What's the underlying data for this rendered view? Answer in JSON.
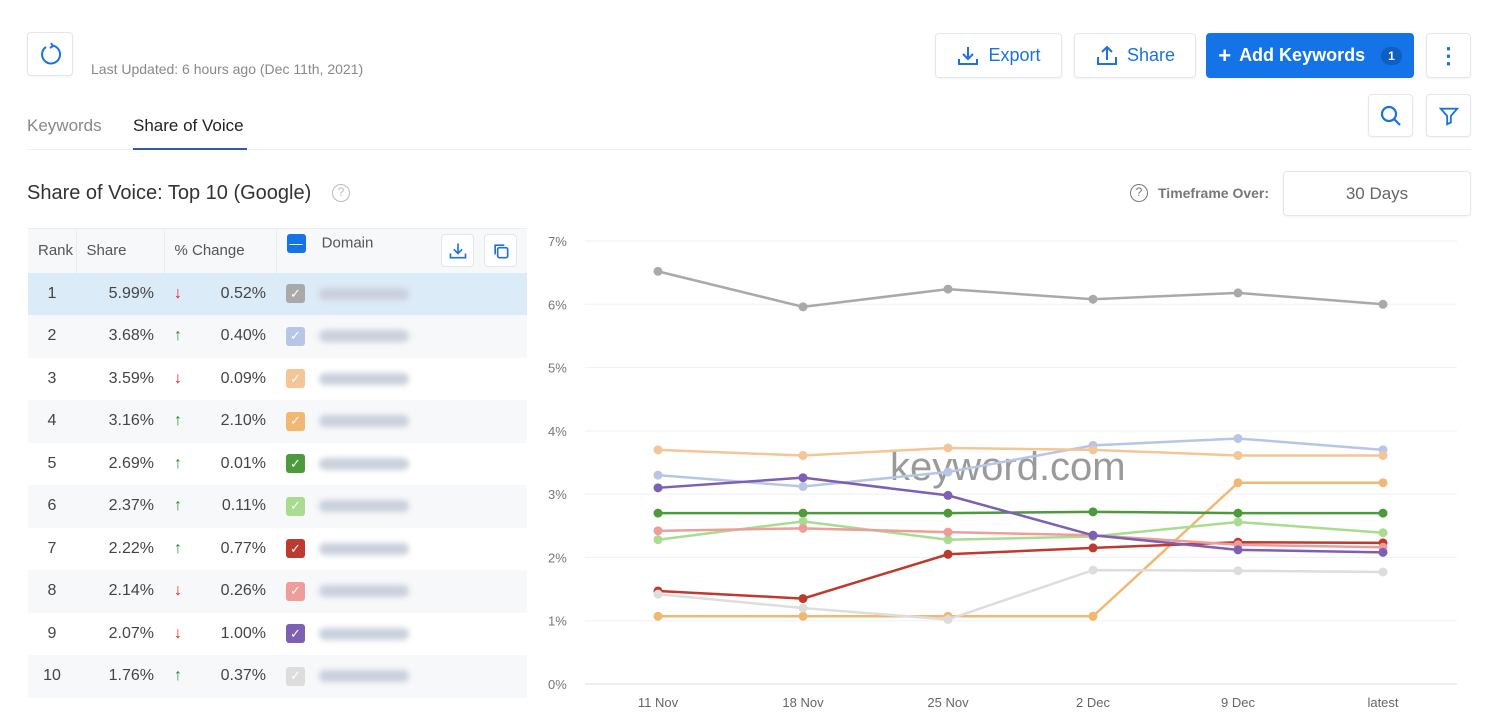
{
  "header": {
    "last_updated": "Last Updated: 6 hours ago (Dec 11th, 2021)",
    "export_label": "Export",
    "share_label": "Share",
    "add_keywords_label": "Add Keywords",
    "add_keywords_count": "1"
  },
  "tabs": [
    {
      "label": "Keywords",
      "active": false
    },
    {
      "label": "Share of Voice",
      "active": true
    }
  ],
  "section": {
    "title": "Share of Voice: Top 10 (Google)",
    "timeframe_label": "Timeframe Over:",
    "timeframe_value": "30 Days"
  },
  "table": {
    "columns": [
      "Rank",
      "Share",
      "% Change",
      "Domain"
    ],
    "rows": [
      {
        "rank": "1",
        "share": "5.99%",
        "dir": "down",
        "change": "0.52%",
        "color": "#a9a9a9"
      },
      {
        "rank": "2",
        "share": "3.68%",
        "dir": "up",
        "change": "0.40%",
        "color": "#b7c5e6"
      },
      {
        "rank": "3",
        "share": "3.59%",
        "dir": "down",
        "change": "0.09%",
        "color": "#f3c597"
      },
      {
        "rank": "4",
        "share": "3.16%",
        "dir": "up",
        "change": "2.10%",
        "color": "#f2b872"
      },
      {
        "rank": "5",
        "share": "2.69%",
        "dir": "up",
        "change": "0.01%",
        "color": "#4c9a3c"
      },
      {
        "rank": "6",
        "share": "2.37%",
        "dir": "up",
        "change": "0.11%",
        "color": "#a9dc90"
      },
      {
        "rank": "7",
        "share": "2.22%",
        "dir": "up",
        "change": "0.77%",
        "color": "#bf3a2e"
      },
      {
        "rank": "8",
        "share": "2.14%",
        "dir": "down",
        "change": "0.26%",
        "color": "#ef9d9a"
      },
      {
        "rank": "9",
        "share": "2.07%",
        "dir": "down",
        "change": "1.00%",
        "color": "#7d5fb4"
      },
      {
        "rank": "10",
        "share": "1.76%",
        "dir": "up",
        "change": "0.37%",
        "color": "#dddddd"
      }
    ]
  },
  "chart_data": {
    "type": "line",
    "categories": [
      "11 Nov",
      "18 Nov",
      "25 Nov",
      "2 Dec",
      "9 Dec",
      "latest"
    ],
    "ylim": [
      0,
      7
    ],
    "yticks": [
      "0%",
      "1%",
      "2%",
      "3%",
      "4%",
      "5%",
      "6%",
      "7%"
    ],
    "watermark": "keyword.com",
    "series": [
      {
        "name": "rank 1",
        "color": "#a9a9a9",
        "values": [
          6.52,
          5.96,
          6.24,
          6.08,
          6.18,
          6.0
        ]
      },
      {
        "name": "rank 2",
        "color": "#b7c5e6",
        "values": [
          3.3,
          3.12,
          3.35,
          3.77,
          3.88,
          3.7
        ]
      },
      {
        "name": "rank 3",
        "color": "#f3c597",
        "values": [
          3.7,
          3.61,
          3.73,
          3.7,
          3.61,
          3.61
        ]
      },
      {
        "name": "rank 4",
        "color": "#f2b872",
        "values": [
          1.07,
          1.07,
          1.07,
          1.07,
          3.18,
          3.18
        ]
      },
      {
        "name": "rank 5",
        "color": "#4c9a3c",
        "values": [
          2.7,
          2.7,
          2.7,
          2.72,
          2.7,
          2.7
        ]
      },
      {
        "name": "rank 6",
        "color": "#a9dc90",
        "values": [
          2.28,
          2.57,
          2.28,
          2.33,
          2.56,
          2.39
        ]
      },
      {
        "name": "rank 7",
        "color": "#bf3a2e",
        "values": [
          1.47,
          1.35,
          2.05,
          2.15,
          2.24,
          2.23
        ]
      },
      {
        "name": "rank 8",
        "color": "#ef9d9a",
        "values": [
          2.42,
          2.46,
          2.4,
          2.35,
          2.2,
          2.16
        ]
      },
      {
        "name": "rank 9",
        "color": "#7d5fb4",
        "values": [
          3.1,
          3.26,
          2.98,
          2.35,
          2.12,
          2.08
        ]
      },
      {
        "name": "rank 10",
        "color": "#dddddd",
        "values": [
          1.42,
          1.2,
          1.02,
          1.8,
          1.79,
          1.77
        ]
      }
    ]
  }
}
